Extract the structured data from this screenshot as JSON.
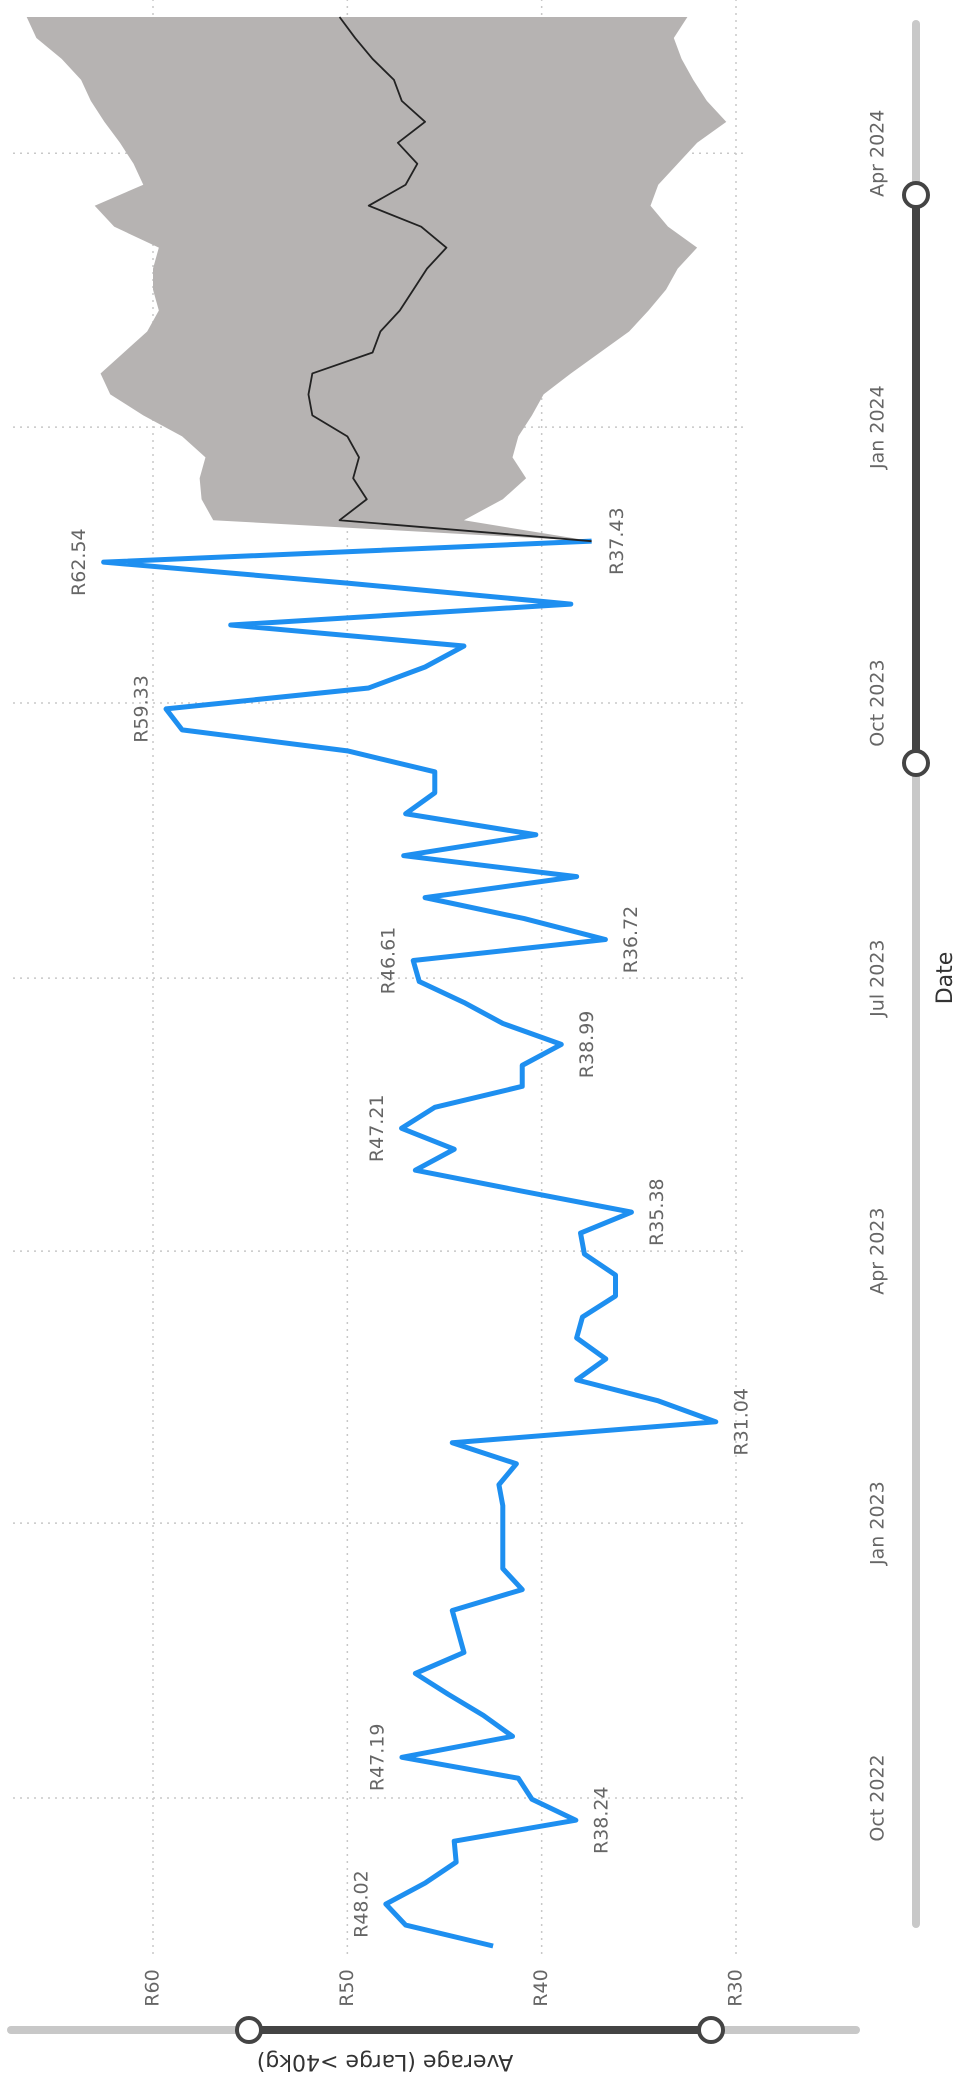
{
  "chart_data": {
    "type": "line",
    "x_label": "Date",
    "y_label": "Average (Large >40kg)",
    "xlim": [
      0,
      92
    ],
    "xticks": [
      {
        "value": 7.06,
        "label": "Oct 2022"
      },
      {
        "value": 20.17,
        "label": "Jan 2023"
      },
      {
        "value": 33.14,
        "label": "Apr 2023"
      },
      {
        "value": 46.16,
        "label": "Jul 2023"
      },
      {
        "value": 59.28,
        "label": "Oct 2023"
      },
      {
        "value": 72.44,
        "label": "Jan 2024"
      },
      {
        "value": 85.5,
        "label": "Apr 2024"
      }
    ],
    "ylim": [
      30,
      60
    ],
    "yticks": [
      {
        "value": 30,
        "label": "R30"
      },
      {
        "value": 40,
        "label": "R40"
      },
      {
        "value": 50,
        "label": "R50"
      },
      {
        "value": 60,
        "label": "R60"
      }
    ],
    "grid": true,
    "series": [
      {
        "color": "#1e8ff0",
        "values": [
          42.5,
          47,
          48.02,
          46,
          44.4,
          44.5,
          38.24,
          40.5,
          41.2,
          47.19,
          41.5,
          43,
          44.8,
          46.5,
          44,
          44.3,
          44.6,
          41,
          42,
          42,
          42,
          42,
          42.2,
          41.3,
          44.6,
          31.04,
          34,
          38.2,
          36.7,
          38.2,
          37.9,
          36.2,
          36.2,
          37.8,
          38,
          35.38,
          41,
          46.5,
          44.5,
          47.21,
          45.5,
          41,
          41,
          38.99,
          42,
          44,
          46.3,
          46.61,
          36.72,
          40.9,
          46,
          38.2,
          47.1,
          40.3,
          47,
          45.5,
          45.5,
          50,
          58.5,
          59.33,
          48.9,
          46,
          44,
          56,
          38.5,
          50,
          62.54,
          37.43,
          null,
          null,
          null,
          null,
          null,
          null,
          null,
          null,
          null,
          null,
          null,
          null,
          null,
          null,
          null,
          null,
          null,
          null,
          null,
          null,
          null,
          null,
          null,
          null,
          null
        ],
        "value_labels": [
          null,
          null,
          "R48.02",
          null,
          null,
          null,
          "R38.24",
          null,
          null,
          "R47.19",
          null,
          null,
          null,
          null,
          null,
          null,
          null,
          null,
          null,
          null,
          null,
          null,
          null,
          null,
          null,
          "R31.04",
          null,
          null,
          null,
          null,
          null,
          null,
          null,
          null,
          null,
          "R35.38",
          null,
          null,
          null,
          "R47.21",
          null,
          null,
          null,
          "R38.99",
          null,
          null,
          null,
          "R46.61",
          "R36.72",
          null,
          null,
          null,
          null,
          null,
          null,
          null,
          null,
          null,
          null,
          "R59.33",
          null,
          null,
          null,
          null,
          null,
          null,
          "R62.54",
          "R37.43",
          null,
          null,
          null,
          null,
          null,
          null,
          null,
          null,
          null,
          null,
          null,
          null,
          null,
          null,
          null,
          null,
          null,
          null,
          null,
          null,
          null,
          null,
          null,
          null,
          null
        ]
      },
      {
        "color": "#222222",
        "values": [
          null,
          null,
          null,
          null,
          null,
          null,
          null,
          null,
          null,
          null,
          null,
          null,
          null,
          null,
          null,
          null,
          null,
          null,
          null,
          null,
          null,
          null,
          null,
          null,
          null,
          null,
          null,
          null,
          null,
          null,
          null,
          null,
          null,
          null,
          null,
          null,
          null,
          null,
          null,
          null,
          null,
          null,
          null,
          null,
          null,
          null,
          null,
          null,
          null,
          null,
          null,
          null,
          null,
          null,
          null,
          null,
          null,
          null,
          null,
          null,
          null,
          null,
          null,
          null,
          null,
          null,
          null,
          37.43,
          50.4,
          49,
          49.7,
          49.4,
          50,
          51.8,
          52,
          51.8,
          48.7,
          48.3,
          47.3,
          46.6,
          45.9,
          44.9,
          46.2,
          48.9,
          47,
          46.4,
          47.4,
          46,
          47.2,
          47.6,
          48.7,
          49.6,
          50.4
        ]
      }
    ],
    "band": {
      "color": "#b6b3b2",
      "upper": [
        null,
        null,
        null,
        null,
        null,
        null,
        null,
        null,
        null,
        null,
        null,
        null,
        null,
        null,
        null,
        null,
        null,
        null,
        null,
        null,
        null,
        null,
        null,
        null,
        null,
        null,
        null,
        null,
        null,
        null,
        null,
        null,
        null,
        null,
        null,
        null,
        null,
        null,
        null,
        null,
        null,
        null,
        null,
        null,
        null,
        null,
        null,
        null,
        null,
        null,
        null,
        null,
        null,
        null,
        null,
        null,
        null,
        null,
        null,
        null,
        null,
        null,
        null,
        null,
        null,
        null,
        null,
        37.43,
        56.9,
        57.5,
        57.6,
        57.3,
        58.5,
        60.5,
        62.2,
        62.7,
        61.5,
        60.3,
        59.7,
        60,
        60,
        59.7,
        62,
        63,
        60.5,
        61,
        61.7,
        62.5,
        63.2,
        63.7,
        64.7,
        66,
        66.5
      ],
      "lower": [
        null,
        null,
        null,
        null,
        null,
        null,
        null,
        null,
        null,
        null,
        null,
        null,
        null,
        null,
        null,
        null,
        null,
        null,
        null,
        null,
        null,
        null,
        null,
        null,
        null,
        null,
        null,
        null,
        null,
        null,
        null,
        null,
        null,
        null,
        null,
        null,
        null,
        null,
        null,
        null,
        null,
        null,
        null,
        null,
        null,
        null,
        null,
        null,
        null,
        null,
        null,
        null,
        null,
        null,
        null,
        null,
        null,
        null,
        null,
        null,
        null,
        null,
        null,
        null,
        null,
        null,
        null,
        37.43,
        44,
        42,
        40.8,
        41.5,
        41.2,
        40.5,
        39.9,
        38.5,
        37,
        35.5,
        34.5,
        33.6,
        33,
        32,
        33.5,
        34.4,
        34,
        33,
        32,
        30.5,
        31.5,
        32.2,
        32.8,
        33.2,
        32.5
      ]
    }
  }
}
